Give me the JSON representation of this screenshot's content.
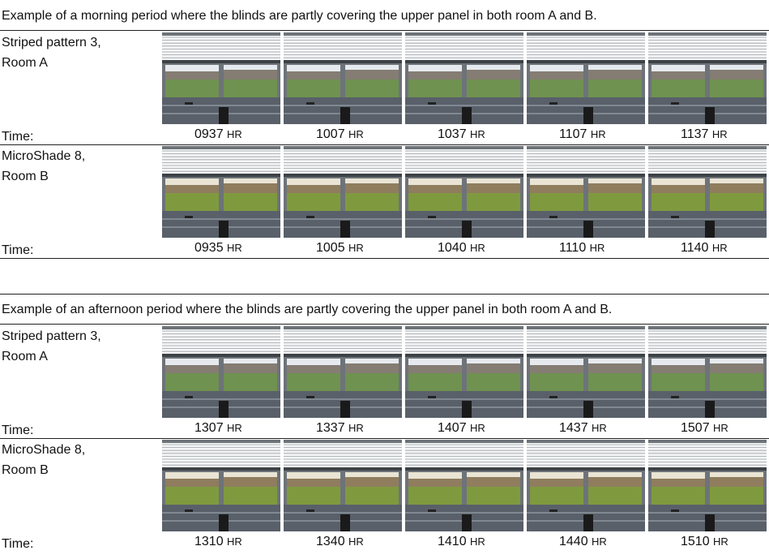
{
  "sections": [
    {
      "caption": "Example of a morning period where the blinds are partly covering the upper panel in both room A and B.",
      "rows": [
        {
          "label": [
            "Striped pattern 3,",
            "Room A"
          ],
          "time_label": "Time:",
          "times": [
            {
              "time": "0937",
              "unit": "HR"
            },
            {
              "time": "1007",
              "unit": "HR"
            },
            {
              "time": "1037",
              "unit": "HR"
            },
            {
              "time": "1107",
              "unit": "HR"
            },
            {
              "time": "1137",
              "unit": "HR"
            }
          ]
        },
        {
          "label": [
            "MicroShade 8,",
            "Room B"
          ],
          "time_label": "Time:",
          "times": [
            {
              "time": "0935",
              "unit": "HR"
            },
            {
              "time": "1005",
              "unit": "HR"
            },
            {
              "time": "1040",
              "unit": "HR"
            },
            {
              "time": "1110",
              "unit": "HR"
            },
            {
              "time": "1140",
              "unit": "HR"
            }
          ]
        }
      ]
    },
    {
      "caption": "Example of an afternoon period where the blinds are partly covering the upper panel in both room A and B.",
      "rows": [
        {
          "label": [
            "Striped pattern 3,",
            "Room A"
          ],
          "time_label": "Time:",
          "times": [
            {
              "time": "1307",
              "unit": "HR"
            },
            {
              "time": "1337",
              "unit": "HR"
            },
            {
              "time": "1407",
              "unit": "HR"
            },
            {
              "time": "1437",
              "unit": "HR"
            },
            {
              "time": "1507",
              "unit": "HR"
            }
          ]
        },
        {
          "label": [
            "MicroShade 8,",
            "Room B"
          ],
          "time_label": "Time:",
          "times": [
            {
              "time": "1310",
              "unit": "HR"
            },
            {
              "time": "1340",
              "unit": "HR"
            },
            {
              "time": "1410",
              "unit": "HR"
            },
            {
              "time": "1440",
              "unit": "HR"
            },
            {
              "time": "1510",
              "unit": "HR"
            }
          ]
        }
      ]
    }
  ]
}
